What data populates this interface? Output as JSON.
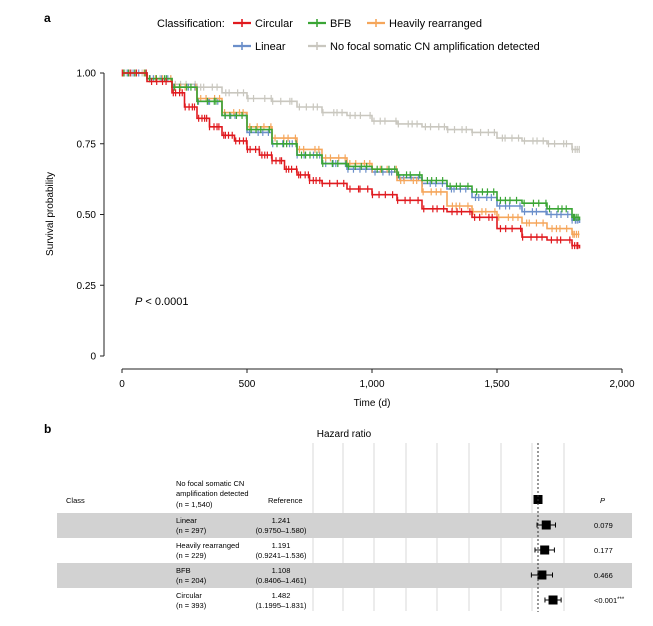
{
  "panel_a": {
    "letter": "a"
  },
  "panel_b": {
    "letter": "b"
  },
  "chart_data": [
    {
      "type": "line",
      "chart_kind": "kaplan-meier",
      "legend_title": "Classification:",
      "xlabel": "Time (d)",
      "ylabel": "Survival probability",
      "xlim": [
        0,
        2000
      ],
      "ylim": [
        0,
        1
      ],
      "x_ticks": [
        0,
        500,
        1000,
        1500,
        2000
      ],
      "x_tick_labels": [
        "0",
        "500",
        "1,000",
        "1,500",
        "2,000"
      ],
      "y_ticks": [
        0,
        0.25,
        0.5,
        0.75,
        1.0
      ],
      "y_tick_labels": [
        "0",
        "0.25",
        "0.50",
        "0.75",
        "1.00"
      ],
      "grid": false,
      "legend_position": "top",
      "annotation": {
        "label": "P",
        "value": "< 0.0001"
      },
      "series": [
        {
          "name": "Circular",
          "color": "#e01a1f",
          "x": [
            0,
            100,
            200,
            250,
            300,
            350,
            400,
            450,
            500,
            550,
            600,
            650,
            700,
            750,
            800,
            900,
            1000,
            1100,
            1200,
            1300,
            1400,
            1500,
            1600,
            1700,
            1800,
            1830
          ],
          "y": [
            1.0,
            0.97,
            0.93,
            0.88,
            0.84,
            0.81,
            0.78,
            0.76,
            0.73,
            0.71,
            0.69,
            0.66,
            0.64,
            0.62,
            0.61,
            0.59,
            0.57,
            0.55,
            0.52,
            0.51,
            0.49,
            0.45,
            0.42,
            0.41,
            0.39,
            0.38
          ]
        },
        {
          "name": "BFB",
          "color": "#3aa535",
          "x": [
            0,
            100,
            200,
            300,
            400,
            500,
            600,
            700,
            800,
            900,
            1000,
            1100,
            1200,
            1300,
            1400,
            1500,
            1600,
            1700,
            1800,
            1830
          ],
          "y": [
            1.0,
            0.98,
            0.95,
            0.9,
            0.85,
            0.8,
            0.75,
            0.71,
            0.68,
            0.67,
            0.66,
            0.64,
            0.62,
            0.6,
            0.58,
            0.55,
            0.54,
            0.52,
            0.49,
            0.48
          ]
        },
        {
          "name": "Heavily rearranged",
          "color": "#f5a65b",
          "x": [
            0,
            100,
            200,
            300,
            400,
            500,
            600,
            700,
            800,
            900,
            1000,
            1100,
            1200,
            1300,
            1400,
            1500,
            1600,
            1700,
            1800,
            1830
          ],
          "y": [
            1.0,
            0.98,
            0.95,
            0.91,
            0.86,
            0.81,
            0.77,
            0.73,
            0.7,
            0.68,
            0.66,
            0.62,
            0.58,
            0.53,
            0.51,
            0.49,
            0.47,
            0.45,
            0.43,
            0.43
          ]
        },
        {
          "name": "Linear",
          "color": "#6b8fca",
          "x": [
            0,
            100,
            200,
            300,
            400,
            500,
            600,
            700,
            800,
            900,
            1000,
            1100,
            1200,
            1300,
            1400,
            1500,
            1600,
            1700,
            1800,
            1830
          ],
          "y": [
            1.0,
            0.98,
            0.95,
            0.9,
            0.85,
            0.79,
            0.75,
            0.71,
            0.68,
            0.66,
            0.65,
            0.63,
            0.61,
            0.59,
            0.56,
            0.53,
            0.51,
            0.5,
            0.48,
            0.47
          ]
        },
        {
          "name": "No focal somatic CN amplification detected",
          "color": "#c9c7bf",
          "x": [
            0,
            100,
            200,
            300,
            400,
            500,
            600,
            700,
            800,
            900,
            1000,
            1100,
            1200,
            1300,
            1400,
            1500,
            1600,
            1700,
            1800,
            1830
          ],
          "y": [
            1.0,
            0.98,
            0.96,
            0.95,
            0.93,
            0.91,
            0.9,
            0.88,
            0.86,
            0.85,
            0.83,
            0.82,
            0.81,
            0.8,
            0.79,
            0.77,
            0.76,
            0.75,
            0.73,
            0.73
          ]
        }
      ]
    },
    {
      "type": "table",
      "chart_kind": "forest-plot",
      "title": "Hazard ratio",
      "column_headers": {
        "class": "Class",
        "p": "P"
      },
      "reference": {
        "name_lines": [
          "No focal somatic CN",
          "amplification detected"
        ],
        "n_label": "(n = 1,540)",
        "hr_text": "Reference",
        "hr": 1.0
      },
      "rows": [
        {
          "name": "Linear",
          "n_label": "(n = 297)",
          "hr_text": "1.241",
          "ci_text": "(0.9750–1.580)",
          "hr": 1.241,
          "ci": [
            0.975,
            1.58
          ],
          "p": "0.079",
          "sig": "",
          "shaded": true
        },
        {
          "name": "Heavily rearranged",
          "n_label": "(n = 229)",
          "hr_text": "1.191",
          "ci_text": "(0.9241–1.536)",
          "hr": 1.191,
          "ci": [
            0.9241,
            1.536
          ],
          "p": "0.177",
          "sig": "",
          "shaded": false
        },
        {
          "name": "BFB",
          "n_label": "(n = 204)",
          "hr_text": "1.108",
          "ci_text": "(0.8406–1.461)",
          "hr": 1.108,
          "ci": [
            0.8406,
            1.461
          ],
          "p": "0.466",
          "sig": "",
          "shaded": true
        },
        {
          "name": "Circular",
          "n_label": "(n = 393)",
          "hr_text": "1.482",
          "ci_text": "(1.1995–1.831)",
          "hr": 1.482,
          "ci": [
            1.1995,
            1.831
          ],
          "p": "<0.001",
          "sig": "***",
          "shaded": false
        }
      ]
    }
  ]
}
